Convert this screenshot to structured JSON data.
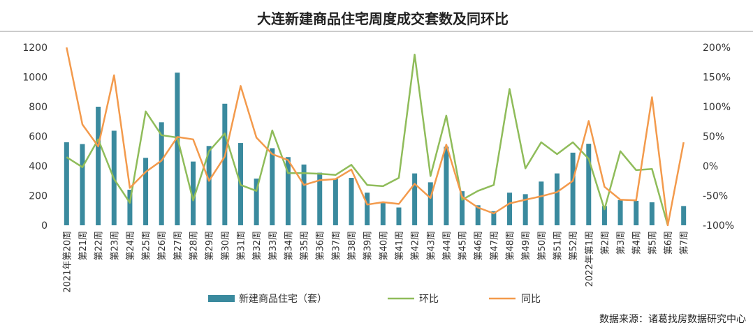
{
  "chart_data": {
    "type": "bar",
    "title": "大连新建商品住宅周度成交套数及同环比",
    "source": "数据来源：诸葛找房数据研究中心",
    "categories": [
      "2021年第20周",
      "第21周",
      "第22周",
      "第23周",
      "第24周",
      "第25周",
      "第26周",
      "第27周",
      "第28周",
      "第29周",
      "第30周",
      "第31周",
      "第32周",
      "第33周",
      "第34周",
      "第35周",
      "第36周",
      "第37周",
      "第38周",
      "第39周",
      "第40周",
      "第41周",
      "第42周",
      "第43周",
      "第44周",
      "第45周",
      "第46周",
      "第47周",
      "第48周",
      "第49周",
      "第50周",
      "第51周",
      "第52周",
      "2022年第1周",
      "第2周",
      "第3周",
      "第4周",
      "第5周",
      "第6周",
      "第7周"
    ],
    "left_axis": {
      "min": 0,
      "max": 1200,
      "ticks": [
        "0",
        "200",
        "400",
        "600",
        "800",
        "1000",
        "1200"
      ]
    },
    "right_axis": {
      "min": -100,
      "max": 200,
      "ticks": [
        "-100%",
        "-50%",
        "0%",
        "50%",
        "100%",
        "150%",
        "200%"
      ]
    },
    "series": [
      {
        "name": "新建商品住宅（套）",
        "type": "bar",
        "axis": "left",
        "color": "#3a8a9e",
        "values": [
          560,
          548,
          800,
          638,
          240,
          455,
          695,
          1030,
          430,
          535,
          820,
          555,
          315,
          520,
          460,
          410,
          355,
          315,
          320,
          220,
          150,
          120,
          350,
          290,
          530,
          230,
          135,
          95,
          220,
          210,
          295,
          350,
          490,
          550,
          130,
          170,
          165,
          155,
          0,
          130
        ]
      },
      {
        "name": "环比",
        "type": "line",
        "axis": "right",
        "color": "#8fbc5a",
        "values": [
          15,
          -2,
          45,
          -22,
          -62,
          92,
          52,
          48,
          -58,
          25,
          55,
          -32,
          -42,
          60,
          -12,
          -12,
          -13,
          -15,
          2,
          -32,
          -34,
          -20,
          188,
          -17,
          85,
          -57,
          -42,
          -32,
          130,
          -4,
          40,
          20,
          40,
          12,
          -73,
          25,
          -7,
          -5,
          -100,
          null
        ]
      },
      {
        "name": "同比",
        "type": "line",
        "axis": "right",
        "color": "#f39a4c",
        "values": [
          200,
          70,
          33,
          153,
          -37,
          -10,
          9,
          49,
          45,
          -25,
          16,
          135,
          48,
          20,
          10,
          -32,
          -24,
          -22,
          -6,
          -65,
          -61,
          -64,
          -30,
          -54,
          36,
          -52,
          -70,
          -80,
          -63,
          -57,
          -51,
          -44,
          -25,
          76,
          -35,
          -57,
          -58,
          116,
          -100,
          40
        ]
      }
    ]
  }
}
